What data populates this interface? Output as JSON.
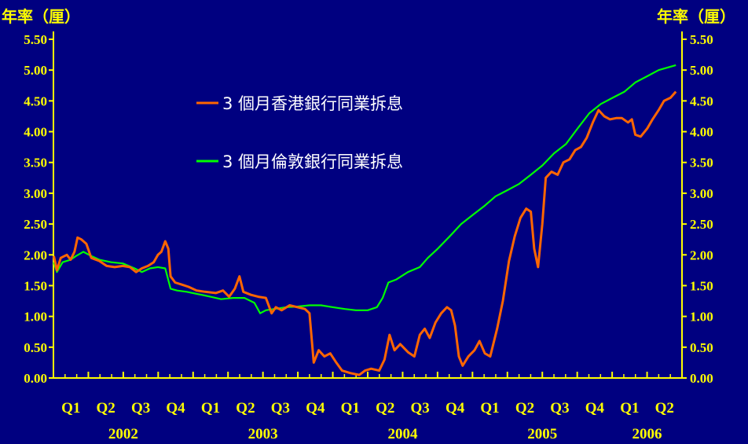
{
  "chart_data": {
    "type": "line",
    "y_unit_label": "年率（厘）",
    "ylim": [
      0,
      5.5
    ],
    "y_ticks": [
      "0.00",
      "0.50",
      "1.00",
      "1.50",
      "2.00",
      "2.50",
      "3.00",
      "3.50",
      "4.00",
      "4.50",
      "5.00",
      "5.50"
    ],
    "quarter_labels": [
      "Q1",
      "Q2",
      "Q3",
      "Q4",
      "Q1",
      "Q2",
      "Q3",
      "Q4",
      "Q1",
      "Q2",
      "Q3",
      "Q4",
      "Q1",
      "Q2",
      "Q3",
      "Q4",
      "Q1",
      "Q2"
    ],
    "year_labels": [
      "2002",
      "2003",
      "2004",
      "2005",
      "2006"
    ],
    "grid": false,
    "legend_position": "upper-center",
    "series": [
      {
        "name": "3 個月香港銀行同業拆息",
        "color": "#FF6600",
        "points": [
          [
            "2002-01-02",
            1.98
          ],
          [
            "2002-01-10",
            1.75
          ],
          [
            "2002-01-20",
            1.95
          ],
          [
            "2002-02-05",
            2.0
          ],
          [
            "2002-02-15",
            1.92
          ],
          [
            "2002-02-25",
            2.05
          ],
          [
            "2002-03-05",
            2.28
          ],
          [
            "2002-03-15",
            2.25
          ],
          [
            "2002-03-28",
            2.18
          ],
          [
            "2002-04-10",
            1.95
          ],
          [
            "2002-05-01",
            1.9
          ],
          [
            "2002-05-20",
            1.82
          ],
          [
            "2002-06-10",
            1.8
          ],
          [
            "2002-07-01",
            1.82
          ],
          [
            "2002-07-20",
            1.8
          ],
          [
            "2002-08-05",
            1.72
          ],
          [
            "2002-08-20",
            1.78
          ],
          [
            "2002-09-05",
            1.82
          ],
          [
            "2002-09-20",
            1.88
          ],
          [
            "2002-10-01",
            2.0
          ],
          [
            "2002-10-10",
            2.05
          ],
          [
            "2002-10-20",
            2.22
          ],
          [
            "2002-10-28",
            2.1
          ],
          [
            "2002-11-03",
            1.65
          ],
          [
            "2002-11-15",
            1.55
          ],
          [
            "2002-12-01",
            1.52
          ],
          [
            "2002-12-20",
            1.48
          ],
          [
            "2003-01-10",
            1.42
          ],
          [
            "2003-02-01",
            1.4
          ],
          [
            "2003-03-01",
            1.38
          ],
          [
            "2003-03-20",
            1.42
          ],
          [
            "2003-04-05",
            1.32
          ],
          [
            "2003-04-20",
            1.45
          ],
          [
            "2003-05-02",
            1.65
          ],
          [
            "2003-05-12",
            1.4
          ],
          [
            "2003-06-01",
            1.35
          ],
          [
            "2003-06-20",
            1.32
          ],
          [
            "2003-07-10",
            1.3
          ],
          [
            "2003-07-25",
            1.05
          ],
          [
            "2003-08-05",
            1.15
          ],
          [
            "2003-08-20",
            1.1
          ],
          [
            "2003-09-10",
            1.18
          ],
          [
            "2003-10-01",
            1.15
          ],
          [
            "2003-10-20",
            1.12
          ],
          [
            "2003-11-01",
            1.05
          ],
          [
            "2003-11-12",
            0.25
          ],
          [
            "2003-11-25",
            0.45
          ],
          [
            "2003-12-10",
            0.35
          ],
          [
            "2003-12-25",
            0.4
          ],
          [
            "2004-01-10",
            0.25
          ],
          [
            "2004-01-25",
            0.12
          ],
          [
            "2004-02-15",
            0.08
          ],
          [
            "2004-03-10",
            0.05
          ],
          [
            "2004-03-25",
            0.12
          ],
          [
            "2004-04-10",
            0.15
          ],
          [
            "2004-05-01",
            0.12
          ],
          [
            "2004-05-15",
            0.3
          ],
          [
            "2004-05-28",
            0.7
          ],
          [
            "2004-06-10",
            0.45
          ],
          [
            "2004-06-25",
            0.55
          ],
          [
            "2004-07-15",
            0.42
          ],
          [
            "2004-08-01",
            0.35
          ],
          [
            "2004-08-15",
            0.7
          ],
          [
            "2004-08-28",
            0.8
          ],
          [
            "2004-09-10",
            0.65
          ],
          [
            "2004-09-25",
            0.9
          ],
          [
            "2004-10-10",
            1.05
          ],
          [
            "2004-10-25",
            1.15
          ],
          [
            "2004-11-05",
            1.1
          ],
          [
            "2004-11-15",
            0.85
          ],
          [
            "2004-11-25",
            0.35
          ],
          [
            "2004-12-05",
            0.2
          ],
          [
            "2004-12-20",
            0.35
          ],
          [
            "2005-01-05",
            0.45
          ],
          [
            "2005-01-18",
            0.6
          ],
          [
            "2005-02-01",
            0.4
          ],
          [
            "2005-02-15",
            0.35
          ],
          [
            "2005-03-05",
            0.8
          ],
          [
            "2005-03-20",
            1.25
          ],
          [
            "2005-04-05",
            1.9
          ],
          [
            "2005-04-20",
            2.3
          ],
          [
            "2005-05-05",
            2.6
          ],
          [
            "2005-05-20",
            2.75
          ],
          [
            "2005-06-01",
            2.7
          ],
          [
            "2005-06-10",
            2.1
          ],
          [
            "2005-06-20",
            1.8
          ],
          [
            "2005-07-01",
            2.5
          ],
          [
            "2005-07-10",
            3.25
          ],
          [
            "2005-07-25",
            3.35
          ],
          [
            "2005-08-10",
            3.3
          ],
          [
            "2005-08-25",
            3.5
          ],
          [
            "2005-09-10",
            3.55
          ],
          [
            "2005-09-25",
            3.7
          ],
          [
            "2005-10-10",
            3.75
          ],
          [
            "2005-10-25",
            3.9
          ],
          [
            "2005-11-10",
            4.15
          ],
          [
            "2005-11-25",
            4.35
          ],
          [
            "2005-12-10",
            4.25
          ],
          [
            "2005-12-25",
            4.2
          ],
          [
            "2006-01-10",
            4.22
          ],
          [
            "2006-01-25",
            4.22
          ],
          [
            "2006-02-10",
            4.15
          ],
          [
            "2006-02-20",
            4.2
          ],
          [
            "2006-03-01",
            3.95
          ],
          [
            "2006-03-15",
            3.92
          ],
          [
            "2006-04-01",
            4.05
          ],
          [
            "2006-04-15",
            4.2
          ],
          [
            "2006-05-01",
            4.35
          ],
          [
            "2006-05-15",
            4.5
          ],
          [
            "2006-06-01",
            4.55
          ],
          [
            "2006-06-15",
            4.65
          ]
        ]
      },
      {
        "name": "3 個月倫敦銀行同業拆息",
        "color": "#00FF00",
        "points": [
          [
            "2002-01-02",
            1.88
          ],
          [
            "2002-01-10",
            1.72
          ],
          [
            "2002-01-25",
            1.88
          ],
          [
            "2002-02-15",
            1.92
          ],
          [
            "2002-03-01",
            1.98
          ],
          [
            "2002-03-20",
            2.05
          ],
          [
            "2002-04-10",
            1.98
          ],
          [
            "2002-05-01",
            1.92
          ],
          [
            "2002-06-01",
            1.88
          ],
          [
            "2002-07-01",
            1.86
          ],
          [
            "2002-08-01",
            1.78
          ],
          [
            "2002-08-20",
            1.72
          ],
          [
            "2002-09-10",
            1.78
          ],
          [
            "2002-10-01",
            1.8
          ],
          [
            "2002-10-20",
            1.78
          ],
          [
            "2002-11-03",
            1.45
          ],
          [
            "2002-11-20",
            1.42
          ],
          [
            "2002-12-15",
            1.4
          ],
          [
            "2003-01-15",
            1.36
          ],
          [
            "2003-02-15",
            1.32
          ],
          [
            "2003-03-15",
            1.28
          ],
          [
            "2003-04-15",
            1.3
          ],
          [
            "2003-05-15",
            1.3
          ],
          [
            "2003-06-10",
            1.22
          ],
          [
            "2003-06-25",
            1.05
          ],
          [
            "2003-07-10",
            1.1
          ],
          [
            "2003-08-01",
            1.12
          ],
          [
            "2003-09-01",
            1.15
          ],
          [
            "2003-10-01",
            1.16
          ],
          [
            "2003-11-01",
            1.18
          ],
          [
            "2003-12-01",
            1.18
          ],
          [
            "2004-01-01",
            1.15
          ],
          [
            "2004-02-01",
            1.12
          ],
          [
            "2004-03-01",
            1.1
          ],
          [
            "2004-04-01",
            1.1
          ],
          [
            "2004-04-25",
            1.15
          ],
          [
            "2004-05-10",
            1.3
          ],
          [
            "2004-05-25",
            1.55
          ],
          [
            "2004-06-15",
            1.6
          ],
          [
            "2004-07-15",
            1.72
          ],
          [
            "2004-08-15",
            1.8
          ],
          [
            "2004-09-05",
            1.95
          ],
          [
            "2004-10-01",
            2.1
          ],
          [
            "2004-11-01",
            2.3
          ],
          [
            "2004-12-01",
            2.5
          ],
          [
            "2005-01-01",
            2.65
          ],
          [
            "2005-02-01",
            2.8
          ],
          [
            "2005-03-01",
            2.95
          ],
          [
            "2005-04-01",
            3.05
          ],
          [
            "2005-05-01",
            3.15
          ],
          [
            "2005-06-01",
            3.3
          ],
          [
            "2005-07-01",
            3.45
          ],
          [
            "2005-08-01",
            3.65
          ],
          [
            "2005-09-01",
            3.8
          ],
          [
            "2005-10-01",
            4.05
          ],
          [
            "2005-11-01",
            4.3
          ],
          [
            "2005-12-01",
            4.45
          ],
          [
            "2006-01-01",
            4.55
          ],
          [
            "2006-02-01",
            4.65
          ],
          [
            "2006-03-01",
            4.8
          ],
          [
            "2006-04-01",
            4.9
          ],
          [
            "2006-05-01",
            5.0
          ],
          [
            "2006-06-15",
            5.08
          ]
        ]
      }
    ]
  }
}
